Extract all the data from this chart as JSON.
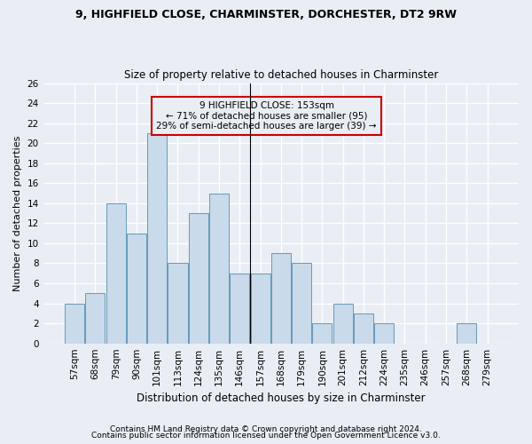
{
  "title1": "9, HIGHFIELD CLOSE, CHARMINSTER, DORCHESTER, DT2 9RW",
  "title2": "Size of property relative to detached houses in Charminster",
  "xlabel": "Distribution of detached houses by size in Charminster",
  "ylabel": "Number of detached properties",
  "footnote1": "Contains HM Land Registry data © Crown copyright and database right 2024.",
  "footnote2": "Contains public sector information licensed under the Open Government Licence v3.0.",
  "bar_labels": [
    "57sqm",
    "68sqm",
    "79sqm",
    "90sqm",
    "101sqm",
    "113sqm",
    "124sqm",
    "135sqm",
    "146sqm",
    "157sqm",
    "168sqm",
    "179sqm",
    "190sqm",
    "201sqm",
    "212sqm",
    "224sqm",
    "235sqm",
    "246sqm",
    "257sqm",
    "268sqm",
    "279sqm"
  ],
  "bar_values": [
    4,
    5,
    14,
    11,
    21,
    8,
    13,
    15,
    7,
    7,
    9,
    8,
    2,
    4,
    3,
    2,
    0,
    0,
    0,
    2,
    0
  ],
  "bar_color": "#c9daea",
  "bar_edge_color": "#6699bb",
  "ylim": [
    0,
    26
  ],
  "yticks": [
    0,
    2,
    4,
    6,
    8,
    10,
    12,
    14,
    16,
    18,
    20,
    22,
    24,
    26
  ],
  "annotation_title": "9 HIGHFIELD CLOSE: 153sqm",
  "annotation_line1": "← 71% of detached houses are smaller (95)",
  "annotation_line2": "29% of semi-detached houses are larger (39) →",
  "annotation_box_color": "#cc0000",
  "background_color": "#e8eef4",
  "grid_color": "#ffffff",
  "title_fontsize": 9,
  "subtitle_fontsize": 8.5,
  "axis_label_fontsize": 8,
  "tick_fontsize": 7.5,
  "footnote_fontsize": 6.5
}
